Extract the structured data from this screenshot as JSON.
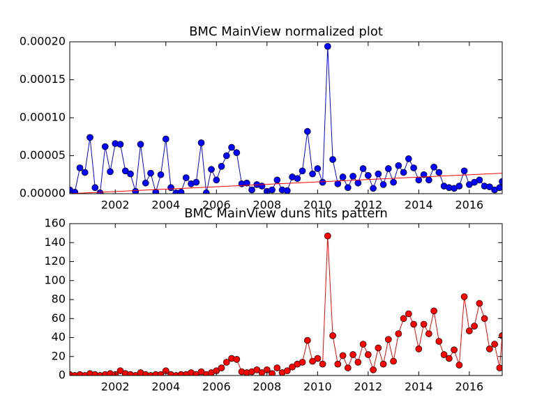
{
  "chart_data": [
    {
      "type": "line",
      "title": "BMC MainView normalized plot",
      "x": [
        2000.2,
        2000.4,
        2000.6,
        2000.8,
        2001.0,
        2001.2,
        2001.4,
        2001.6,
        2001.8,
        2002.0,
        2002.2,
        2002.4,
        2002.6,
        2002.8,
        2003.0,
        2003.2,
        2003.4,
        2003.6,
        2003.8,
        2004.0,
        2004.2,
        2004.4,
        2004.6,
        2004.8,
        2005.0,
        2005.2,
        2005.4,
        2005.6,
        2005.8,
        2006.0,
        2006.2,
        2006.4,
        2006.6,
        2006.8,
        2007.0,
        2007.2,
        2007.4,
        2007.6,
        2007.8,
        2008.0,
        2008.2,
        2008.4,
        2008.6,
        2008.8,
        2009.0,
        2009.2,
        2009.4,
        2009.6,
        2009.8,
        2010.0,
        2010.2,
        2010.4,
        2010.6,
        2010.8,
        2011.0,
        2011.2,
        2011.4,
        2011.6,
        2011.8,
        2012.0,
        2012.2,
        2012.4,
        2012.6,
        2012.8,
        2013.0,
        2013.2,
        2013.4,
        2013.6,
        2013.8,
        2014.0,
        2014.2,
        2014.4,
        2014.6,
        2014.8,
        2015.0,
        2015.2,
        2015.4,
        2015.6,
        2015.8,
        2016.0,
        2016.2,
        2016.4,
        2016.6,
        2016.8,
        2017.0,
        2017.2,
        2017.3
      ],
      "series": [
        {
          "color": "#0000ff",
          "values": [
            5e-06,
            2e-06,
            3.4e-05,
            2.8e-05,
            7.4e-05,
            8e-06,
            1e-06,
            6.2e-05,
            2.9e-05,
            6.6e-05,
            6.5e-05,
            3e-05,
            2.6e-05,
            3e-06,
            6.5e-05,
            1.4e-05,
            2.7e-05,
            2e-06,
            2.5e-05,
            7.2e-05,
            8e-06,
            1e-06,
            2e-06,
            2.1e-05,
            1.3e-05,
            1.5e-05,
            6.7e-05,
            1e-06,
            3.2e-05,
            1.8e-05,
            3.6e-05,
            5e-05,
            6.1e-05,
            5.4e-05,
            1.3e-05,
            1.4e-05,
            5e-06,
            1.2e-05,
            1e-05,
            3e-06,
            5e-06,
            1.8e-05,
            5e-06,
            4e-06,
            2.2e-05,
            2e-05,
            3e-05,
            8.2e-05,
            2.6e-05,
            3.3e-05,
            1.5e-05,
            0.000194,
            4.5e-05,
            1.3e-05,
            2.2e-05,
            8e-06,
            2.3e-05,
            1.4e-05,
            3.3e-05,
            2.4e-05,
            7e-06,
            2.6e-05,
            1.2e-05,
            3.3e-05,
            1.5e-05,
            3.7e-05,
            2.8e-05,
            4.6e-05,
            3.4e-05,
            1.8e-05,
            2.5e-05,
            1.8e-05,
            3.5e-05,
            2.8e-05,
            1e-05,
            8e-06,
            7e-06,
            1e-05,
            3e-05,
            1.2e-05,
            1.5e-05,
            1.8e-05,
            1e-05,
            9e-06,
            5e-06,
            8e-06,
            1.6e-05
          ]
        },
        {
          "color": "#ff0000",
          "markers": false,
          "x": [
            2000.2,
            2017.3
          ],
          "values": [
            0,
            2.7e-05
          ]
        }
      ],
      "xlim": [
        2000.2,
        2017.3
      ],
      "xticks": [
        2002,
        2004,
        2006,
        2008,
        2010,
        2012,
        2014,
        2016
      ],
      "ylim": [
        0,
        0.0002
      ],
      "yticks": [
        {
          "value": 0,
          "label": "0.00000"
        },
        {
          "value": 5e-05,
          "label": "0.00005"
        },
        {
          "value": 0.0001,
          "label": "0.00010"
        },
        {
          "value": 0.00015,
          "label": "0.00015"
        },
        {
          "value": 0.0002,
          "label": "0.00020"
        }
      ]
    },
    {
      "type": "line",
      "title": "BMC MainView duns hits pattern",
      "x": [
        2000.2,
        2000.4,
        2000.6,
        2000.8,
        2001.0,
        2001.2,
        2001.4,
        2001.6,
        2001.8,
        2002.0,
        2002.2,
        2002.4,
        2002.6,
        2002.8,
        2003.0,
        2003.2,
        2003.4,
        2003.6,
        2003.8,
        2004.0,
        2004.2,
        2004.4,
        2004.6,
        2004.8,
        2005.0,
        2005.2,
        2005.4,
        2005.6,
        2005.8,
        2006.0,
        2006.2,
        2006.4,
        2006.6,
        2006.8,
        2007.0,
        2007.2,
        2007.4,
        2007.6,
        2007.8,
        2008.0,
        2008.2,
        2008.4,
        2008.6,
        2008.8,
        2009.0,
        2009.2,
        2009.4,
        2009.6,
        2009.8,
        2010.0,
        2010.2,
        2010.4,
        2010.6,
        2010.8,
        2011.0,
        2011.2,
        2011.4,
        2011.6,
        2011.8,
        2012.0,
        2012.2,
        2012.4,
        2012.6,
        2012.8,
        2013.0,
        2013.2,
        2013.4,
        2013.6,
        2013.8,
        2014.0,
        2014.2,
        2014.4,
        2014.6,
        2014.8,
        2015.0,
        2015.2,
        2015.4,
        2015.6,
        2015.8,
        2016.0,
        2016.2,
        2016.4,
        2016.6,
        2016.8,
        2017.0,
        2017.2,
        2017.3
      ],
      "series": [
        {
          "color": "#ff0000",
          "values": [
            1,
            0,
            1,
            0,
            2,
            1,
            0,
            1,
            2,
            1,
            5,
            2,
            1,
            0,
            3,
            1,
            0,
            1,
            1,
            5,
            1,
            0,
            1,
            1,
            3,
            1,
            4,
            1,
            3,
            5,
            8,
            14,
            18,
            17,
            4,
            3,
            4,
            6,
            3,
            6,
            2,
            8,
            3,
            5,
            9,
            12,
            14,
            37,
            15,
            18,
            12,
            147,
            42,
            12,
            21,
            8,
            22,
            14,
            33,
            22,
            6,
            29,
            12,
            38,
            15,
            44,
            60,
            65,
            54,
            28,
            54,
            44,
            68,
            36,
            22,
            18,
            27,
            11,
            83,
            47,
            52,
            76,
            60,
            28,
            33,
            8,
            42
          ]
        }
      ],
      "xlim": [
        2000.2,
        2017.3
      ],
      "xticks": [
        2002,
        2004,
        2006,
        2008,
        2010,
        2012,
        2014,
        2016
      ],
      "ylim": [
        0,
        160
      ],
      "yticks": [
        0,
        20,
        40,
        60,
        80,
        100,
        120,
        140,
        160
      ]
    }
  ]
}
